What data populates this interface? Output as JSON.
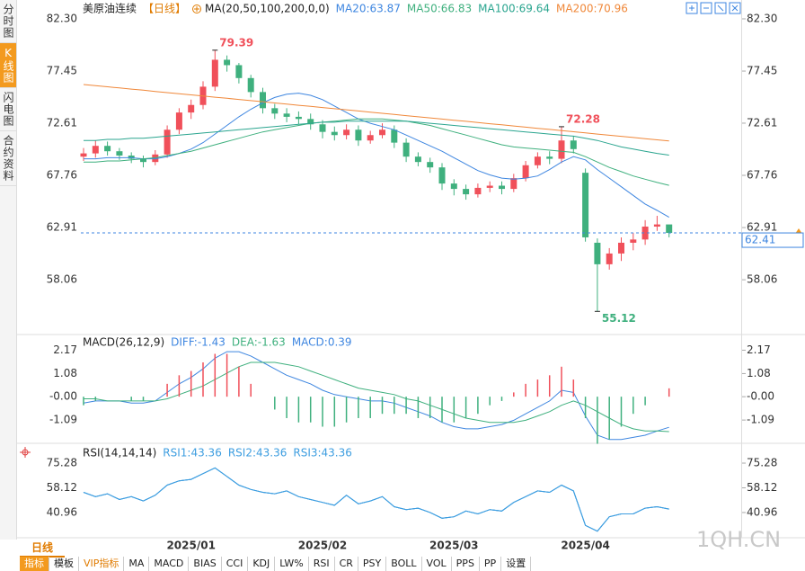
{
  "sidebar": [
    "分时图",
    "K线图",
    "闪电图",
    "合约资料"
  ],
  "period": "日线",
  "toolbar": [
    "指标",
    "模板",
    "VIP指标",
    "MA",
    "MACD",
    "BIAS",
    "CCI",
    "KDJ",
    "LW%",
    "RSI",
    "CR",
    "PSY",
    "BOLL",
    "VOL",
    "PPS",
    "PP",
    "设置"
  ],
  "watermark": "1QH.CN",
  "chart_data": [
    {
      "type": "candlestick",
      "title": "美原油连续",
      "period_label": "【日线】",
      "indicator": "MA(20,50,100,200,0,0)",
      "categories": [
        null,
        null,
        null,
        null,
        null,
        null,
        null,
        null,
        null,
        "2025/01",
        null,
        null,
        null,
        null,
        null,
        null,
        null,
        null,
        null,
        null,
        "2025/02",
        null,
        null,
        null,
        null,
        null,
        null,
        null,
        null,
        null,
        null,
        "2025/03",
        null,
        null,
        null,
        null,
        null,
        null,
        null,
        null,
        null,
        null,
        "2025/04",
        null,
        null,
        null,
        null,
        null,
        null,
        null
      ],
      "up_color": "#f0505a",
      "down_color": "#3fb07e",
      "candles": {
        "open": [
          69.5,
          69.8,
          70.5,
          70.0,
          69.6,
          69.3,
          69.0,
          69.7,
          72.0,
          73.6,
          74.3,
          76.0,
          78.5,
          78.0,
          76.8,
          75.5,
          74.0,
          73.5,
          73.2,
          73.0,
          72.5,
          71.8,
          71.5,
          72.0,
          71.0,
          71.5,
          72.0,
          70.8,
          69.5,
          69.0,
          68.5,
          67.0,
          66.5,
          66.0,
          66.6,
          66.8,
          66.5,
          67.5,
          68.7,
          69.5,
          69.3,
          71.0,
          68.0,
          61.5,
          59.5,
          60.5,
          61.5,
          61.8,
          63.0,
          63.2
        ],
        "high": [
          70.3,
          71.0,
          70.9,
          70.3,
          69.9,
          69.6,
          70.1,
          72.4,
          74.0,
          74.8,
          76.5,
          79.39,
          78.9,
          78.2,
          77.1,
          75.9,
          74.4,
          74.0,
          73.7,
          73.5,
          72.9,
          72.3,
          72.5,
          72.4,
          71.9,
          72.6,
          72.4,
          71.2,
          69.9,
          69.4,
          68.9,
          67.4,
          66.9,
          67.0,
          67.2,
          67.2,
          67.9,
          69.1,
          69.9,
          70.0,
          72.28,
          71.4,
          68.4,
          61.9,
          61.0,
          62.0,
          62.4,
          63.6,
          64.0,
          62.9
        ],
        "low": [
          69.1,
          69.4,
          69.6,
          69.2,
          68.9,
          68.5,
          68.7,
          69.4,
          71.6,
          73.0,
          73.9,
          75.6,
          77.4,
          76.3,
          75.0,
          73.5,
          73.0,
          72.7,
          72.5,
          72.0,
          71.2,
          71.0,
          71.1,
          70.5,
          70.7,
          71.2,
          70.3,
          69.0,
          68.6,
          68.0,
          66.4,
          65.9,
          65.5,
          65.7,
          66.2,
          66.0,
          66.2,
          67.2,
          68.4,
          68.8,
          68.9,
          69.8,
          61.6,
          55.12,
          59.0,
          59.8,
          60.8,
          61.3,
          62.6,
          62.0
        ],
        "close": [
          69.8,
          70.5,
          70.0,
          69.6,
          69.3,
          69.0,
          69.7,
          72.0,
          73.6,
          74.3,
          76.0,
          78.5,
          78.0,
          76.8,
          75.5,
          74.0,
          73.5,
          73.2,
          73.0,
          72.5,
          71.8,
          71.5,
          72.0,
          71.0,
          71.5,
          72.0,
          70.8,
          69.5,
          69.0,
          68.5,
          67.0,
          66.5,
          66.0,
          66.6,
          66.8,
          66.5,
          67.5,
          68.7,
          69.5,
          69.3,
          71.0,
          70.2,
          62.0,
          59.5,
          60.5,
          61.5,
          61.8,
          63.0,
          63.2,
          62.41
        ]
      },
      "last_price_color": "#3e86e0",
      "series": [
        {
          "label": "MA20:63.87",
          "color": "#3e86e0",
          "values": [
            69.3,
            69.3,
            69.4,
            69.4,
            69.4,
            69.3,
            69.3,
            69.5,
            69.8,
            70.2,
            70.8,
            71.6,
            72.4,
            73.2,
            73.9,
            74.5,
            75.0,
            75.3,
            75.4,
            75.2,
            74.8,
            74.2,
            73.6,
            73.0,
            72.6,
            72.3,
            72.0,
            71.5,
            71.0,
            70.5,
            70.0,
            69.4,
            68.8,
            68.2,
            67.8,
            67.5,
            67.4,
            67.5,
            67.7,
            68.3,
            69.0,
            69.5,
            69.2,
            68.3,
            67.5,
            66.7,
            65.9,
            65.1,
            64.5,
            63.87
          ]
        },
        {
          "label": "MA50:66.83",
          "color": "#3fb07e",
          "values": [
            69.0,
            69.0,
            69.1,
            69.1,
            69.2,
            69.3,
            69.4,
            69.6,
            69.8,
            70.0,
            70.3,
            70.6,
            70.9,
            71.2,
            71.5,
            71.8,
            72.0,
            72.2,
            72.4,
            72.6,
            72.7,
            72.8,
            72.9,
            73.0,
            73.0,
            73.0,
            72.9,
            72.8,
            72.6,
            72.4,
            72.1,
            71.8,
            71.5,
            71.2,
            70.9,
            70.6,
            70.4,
            70.3,
            70.2,
            70.1,
            70.0,
            69.9,
            69.5,
            69.0,
            68.5,
            68.1,
            67.7,
            67.4,
            67.1,
            66.83
          ]
        },
        {
          "label": "MA100:69.64",
          "color": "#2aa58f",
          "values": [
            71.0,
            71.0,
            71.1,
            71.1,
            71.2,
            71.2,
            71.3,
            71.4,
            71.5,
            71.6,
            71.7,
            71.8,
            71.9,
            72.0,
            72.1,
            72.2,
            72.3,
            72.4,
            72.5,
            72.6,
            72.7,
            72.7,
            72.8,
            72.8,
            72.8,
            72.8,
            72.8,
            72.8,
            72.7,
            72.6,
            72.5,
            72.4,
            72.3,
            72.2,
            72.1,
            72.0,
            71.9,
            71.8,
            71.7,
            71.6,
            71.5,
            71.4,
            71.2,
            71.0,
            70.7,
            70.4,
            70.2,
            70.0,
            69.8,
            69.64
          ]
        },
        {
          "label": "MA200:70.96",
          "color": "#f0883a",
          "values": [
            76.2,
            76.09,
            75.99,
            75.88,
            75.77,
            75.67,
            75.56,
            75.45,
            75.34,
            75.24,
            75.13,
            75.02,
            74.92,
            74.81,
            74.7,
            74.6,
            74.49,
            74.38,
            74.27,
            74.17,
            74.06,
            73.95,
            73.85,
            73.74,
            73.63,
            73.53,
            73.42,
            73.31,
            73.2,
            73.1,
            72.99,
            72.88,
            72.78,
            72.67,
            72.56,
            72.46,
            72.35,
            72.24,
            72.13,
            72.03,
            71.92,
            71.81,
            71.71,
            71.6,
            71.49,
            71.39,
            71.28,
            71.17,
            71.06,
            70.96
          ]
        }
      ],
      "ylim": [
        53.14,
        82.8
      ],
      "yticks": [
        {
          "value": 82.3,
          "label": "82.30"
        },
        77.45,
        72.61,
        67.76,
        62.91,
        58.06
      ]
    },
    {
      "type": "macd",
      "title": "MACD(26,12,9)",
      "up_color": "#f0505a",
      "down_color": "#3fb07e",
      "series": [
        {
          "label": "DIFF:-1.43",
          "color": "#3e86e0",
          "style": "line",
          "values": [
            -0.3,
            -0.2,
            -0.2,
            -0.2,
            -0.3,
            -0.3,
            -0.2,
            0.2,
            0.6,
            0.9,
            1.3,
            1.8,
            2.1,
            2.1,
            1.9,
            1.6,
            1.3,
            1.0,
            0.8,
            0.6,
            0.3,
            0.1,
            0.0,
            -0.1,
            -0.2,
            -0.2,
            -0.3,
            -0.5,
            -0.7,
            -0.9,
            -1.2,
            -1.4,
            -1.5,
            -1.5,
            -1.4,
            -1.3,
            -1.1,
            -0.8,
            -0.5,
            -0.2,
            0.3,
            0.2,
            -0.9,
            -1.8,
            -2.0,
            -2.0,
            -1.9,
            -1.8,
            -1.6,
            -1.43
          ]
        },
        {
          "label": "DEA:-1.63",
          "color": "#3fb07e",
          "style": "line",
          "values": [
            -0.1,
            -0.1,
            -0.2,
            -0.2,
            -0.2,
            -0.2,
            -0.2,
            -0.1,
            0.1,
            0.3,
            0.5,
            0.8,
            1.1,
            1.4,
            1.6,
            1.6,
            1.6,
            1.5,
            1.4,
            1.2,
            1.0,
            0.8,
            0.6,
            0.4,
            0.3,
            0.2,
            0.1,
            -0.1,
            -0.2,
            -0.4,
            -0.6,
            -0.8,
            -1.0,
            -1.1,
            -1.2,
            -1.2,
            -1.2,
            -1.1,
            -0.9,
            -0.7,
            -0.4,
            -0.2,
            -0.4,
            -0.7,
            -1.0,
            -1.3,
            -1.5,
            -1.6,
            -1.6,
            -1.63
          ]
        },
        {
          "label": "MACD:0.39",
          "color": "#3e86e0",
          "style": "bar",
          "values": [
            -0.4,
            -0.2,
            0,
            0,
            -0.2,
            -0.2,
            0,
            0.6,
            1.0,
            1.2,
            1.6,
            2.0,
            2.0,
            1.4,
            0.6,
            0,
            -0.6,
            -1.0,
            -1.2,
            -1.2,
            -1.4,
            -1.4,
            -1.2,
            -1.0,
            -1.0,
            -0.8,
            -0.8,
            -0.8,
            -1.0,
            -1.0,
            -1.2,
            -1.2,
            -1.0,
            -0.8,
            -0.4,
            -0.2,
            0.2,
            0.6,
            0.8,
            1.0,
            1.4,
            0.8,
            -1.0,
            -2.2,
            -2.0,
            -1.4,
            -0.8,
            -0.4,
            0,
            0.39
          ]
        }
      ],
      "ylim": [
        -2.05,
        2.86
      ],
      "yticks": [
        2.17,
        1.08,
        {
          "value": 0,
          "label": "-0.00"
        },
        -1.09
      ]
    },
    {
      "type": "line",
      "title": "RSI(14,14,14)",
      "series": [
        {
          "label": "RSI1:43.36",
          "color": "#3e9ee0",
          "values": [
            55,
            52,
            54,
            50,
            52,
            49,
            53,
            60,
            63,
            64,
            68,
            72,
            66,
            60,
            57,
            55,
            54,
            56,
            52,
            50,
            48,
            46,
            53,
            47,
            49,
            52,
            45,
            43,
            44,
            41,
            37,
            38,
            42,
            40,
            43,
            42,
            48,
            52,
            56,
            55,
            60,
            56,
            32,
            28,
            38,
            40,
            40,
            44,
            45,
            43.36
          ]
        },
        {
          "label": "RSI2:43.36",
          "color": "#3e9ee0",
          "values": [
            55,
            52,
            54,
            50,
            52,
            49,
            53,
            60,
            63,
            64,
            68,
            72,
            66,
            60,
            57,
            55,
            54,
            56,
            52,
            50,
            48,
            46,
            53,
            47,
            49,
            52,
            45,
            43,
            44,
            41,
            37,
            38,
            42,
            40,
            43,
            42,
            48,
            52,
            56,
            55,
            60,
            56,
            32,
            28,
            38,
            40,
            40,
            44,
            45,
            43.36
          ]
        },
        {
          "label": "RSI3:43.36",
          "color": "#3e9ee0",
          "values": [
            55,
            52,
            54,
            50,
            52,
            49,
            53,
            60,
            63,
            64,
            68,
            72,
            66,
            60,
            57,
            55,
            54,
            56,
            52,
            50,
            48,
            46,
            53,
            47,
            49,
            52,
            45,
            43,
            44,
            41,
            37,
            38,
            42,
            40,
            43,
            42,
            48,
            52,
            56,
            55,
            60,
            56,
            32,
            28,
            38,
            40,
            40,
            44,
            45,
            43.36
          ]
        }
      ],
      "ylim": [
        23.46,
        87.78
      ],
      "yticks": [
        75.28,
        58.12,
        40.96
      ]
    }
  ]
}
